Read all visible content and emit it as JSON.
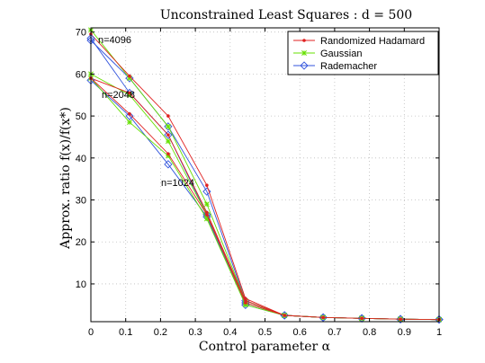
{
  "chart_data": {
    "type": "line",
    "title": "Unconstrained Least Squares : d = 500",
    "xlabel": "Control parameter α",
    "ylabel": "Approx. ratio f(x)/f(x*)",
    "xlim": [
      0,
      1
    ],
    "ylim": [
      1,
      71
    ],
    "x_ticks": [
      "0",
      "0.1",
      "0.2",
      "0.3",
      "0.4",
      "0.5",
      "0.6",
      "0.7",
      "0.8",
      "0.9",
      "1"
    ],
    "y_ticks": [
      "10",
      "20",
      "30",
      "40",
      "50",
      "60",
      "70"
    ],
    "grid": true,
    "legend_position": "top-right",
    "x": [
      0,
      0.111,
      0.222,
      0.333,
      0.444,
      0.556,
      0.667,
      0.778,
      0.889,
      1.0
    ],
    "groups": [
      {
        "label": "n=4096",
        "series": [
          {
            "name": "Randomized Hadamard",
            "values": [
              69.5,
              59.5,
              50.0,
              33.5,
              6.5,
              2.5,
              2.0,
              1.8,
              1.6,
              1.5
            ]
          },
          {
            "name": "Gaussian",
            "values": [
              70.5,
              59.0,
              47.5,
              29.0,
              6.0,
              2.5,
              2.0,
              1.8,
              1.6,
              1.5
            ]
          },
          {
            "name": "Rademacher",
            "values": [
              68.0,
              59.0,
              47.5,
              32.0,
              6.0,
              2.5,
              2.0,
              1.8,
              1.6,
              1.5
            ]
          }
        ]
      },
      {
        "label": "n=2048",
        "series": [
          {
            "name": "Randomized Hadamard",
            "values": [
              59.0,
              55.5,
              45.5,
              27.0,
              6.0,
              2.5,
              2.0,
              1.8,
              1.6,
              1.5
            ]
          },
          {
            "name": "Gaussian",
            "values": [
              60.0,
              55.0,
              44.0,
              26.5,
              5.5,
              2.5,
              2.0,
              1.8,
              1.6,
              1.5
            ]
          },
          {
            "name": "Rademacher",
            "values": [
              68.5,
              55.5,
              45.5,
              26.5,
              5.5,
              2.5,
              2.0,
              1.8,
              1.6,
              1.5
            ]
          }
        ]
      },
      {
        "label": "n=1024",
        "series": [
          {
            "name": "Randomized Hadamard",
            "values": [
              59.0,
              50.5,
              41.0,
              26.5,
              5.5,
              2.5,
              2.0,
              1.8,
              1.6,
              1.5
            ]
          },
          {
            "name": "Gaussian",
            "values": [
              59.0,
              48.5,
              40.5,
              25.5,
              5.0,
              2.5,
              2.0,
              1.8,
              1.6,
              1.5
            ]
          },
          {
            "name": "Rademacher",
            "values": [
              58.5,
              50.0,
              38.5,
              26.0,
              5.0,
              2.5,
              2.0,
              1.8,
              1.6,
              1.5
            ]
          }
        ]
      }
    ],
    "colors": {
      "Randomized Hadamard": "#e02020",
      "Gaussian": "#66e000",
      "Rademacher": "#3355dd"
    },
    "legend": [
      "Randomized Hadamard",
      "Gaussian",
      "Rademacher"
    ]
  }
}
